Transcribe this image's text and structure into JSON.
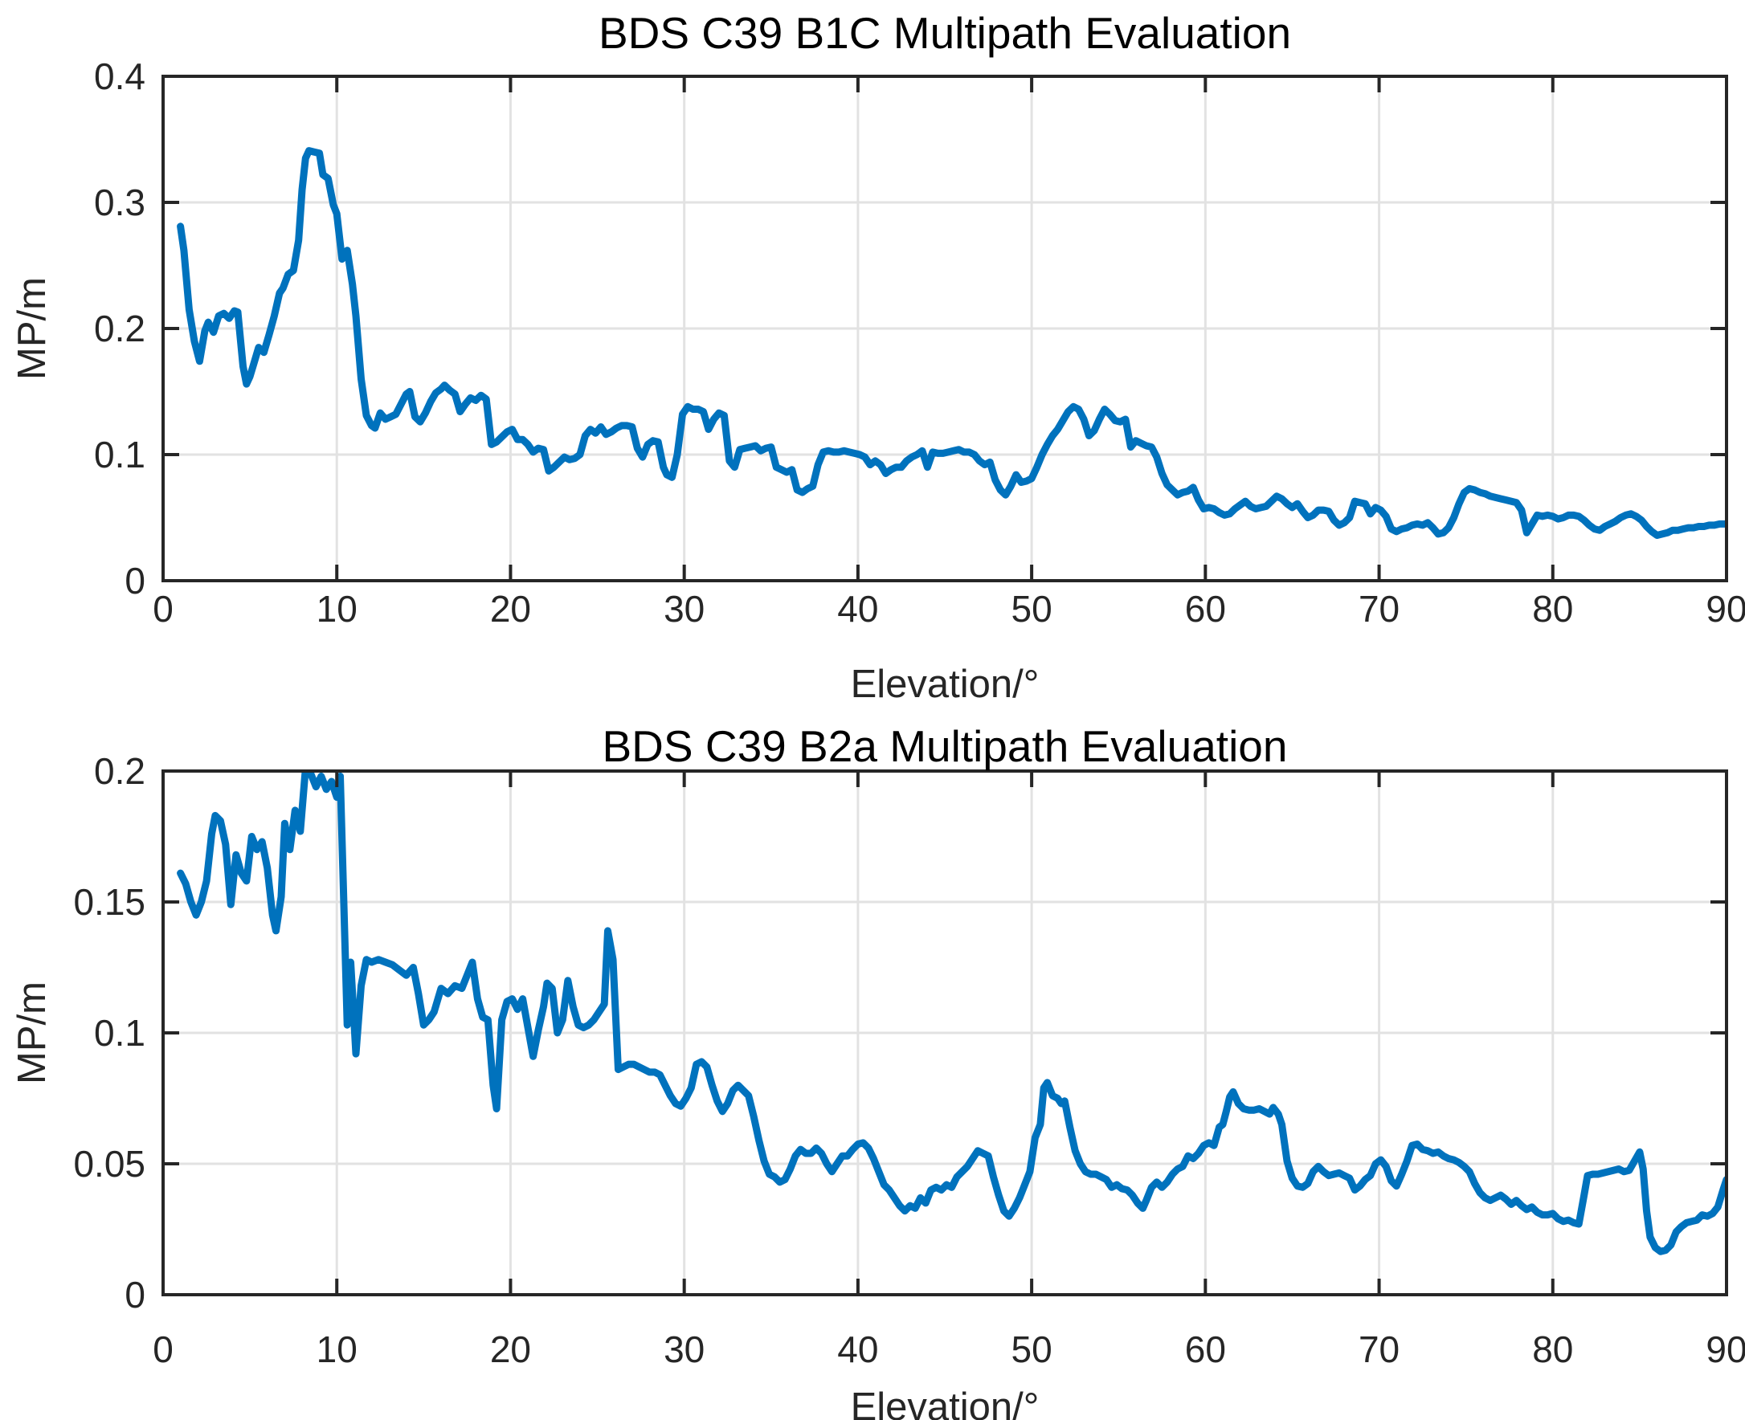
{
  "figure": {
    "background": "#ffffff",
    "axis_color": "#262626",
    "grid_color": "#e2e2e2",
    "line_color": "#0072BD"
  },
  "chart_data": [
    {
      "type": "line",
      "title": "BDS C39 B1C Multipath Evaluation",
      "xlabel": "Elevation/°",
      "ylabel": "MP/m",
      "xlim": [
        0,
        90
      ],
      "ylim": [
        0,
        0.4
      ],
      "xticks": [
        0,
        10,
        20,
        30,
        40,
        50,
        60,
        70,
        80,
        90
      ],
      "xtick_labels": [
        "0",
        "10",
        "20",
        "30",
        "40",
        "50",
        "60",
        "70",
        "80",
        "90"
      ],
      "yticks": [
        0,
        0.1,
        0.2,
        0.3,
        0.4
      ],
      "ytick_labels": [
        "0",
        "0.1",
        "0.2",
        "0.3",
        "0.4"
      ],
      "grid": true,
      "legend": "none",
      "line_color": "#0072BD",
      "x": [
        1,
        1.2,
        1.5,
        1.8,
        2.1,
        2.4,
        2.6,
        2.9,
        3.2,
        3.5,
        3.8,
        4.1,
        4.3,
        4.6,
        4.8,
        5,
        5.2,
        5.5,
        5.8,
        6.1,
        6.4,
        6.7,
        6.9,
        7.2,
        7.5,
        7.8,
        8,
        8.2,
        8.4,
        8.7,
        9,
        9.2,
        9.5,
        9.8,
        10,
        10.3,
        10.6,
        10.9,
        11.1,
        11.4,
        11.7,
        12,
        12.2,
        12.5,
        12.8,
        13.1,
        13.4,
        13.7,
        14,
        14.2,
        14.5,
        14.8,
        15.1,
        15.4,
        15.7,
        16,
        16.2,
        16.5,
        16.8,
        17.1,
        17.4,
        17.7,
        18,
        18.3,
        18.6,
        18.9,
        19.2,
        19.5,
        19.8,
        20.1,
        20.4,
        20.7,
        21,
        21.3,
        21.6,
        21.9,
        22.2,
        22.5,
        22.8,
        23.1,
        23.4,
        23.7,
        24,
        24.3,
        24.6,
        24.9,
        25.2,
        25.5,
        25.8,
        26.1,
        26.4,
        26.7,
        27,
        27.3,
        27.6,
        27.9,
        28.2,
        28.5,
        28.8,
        29,
        29.3,
        29.6,
        29.9,
        30.2,
        30.5,
        30.8,
        31.1,
        31.4,
        31.7,
        32,
        32.3,
        32.6,
        32.9,
        33.2,
        33.5,
        33.8,
        34.1,
        34.4,
        34.7,
        35,
        35.3,
        35.6,
        35.9,
        36.2,
        36.5,
        36.8,
        37.1,
        37.4,
        37.7,
        38,
        38.3,
        38.6,
        38.9,
        39.2,
        39.5,
        39.8,
        40.1,
        40.4,
        40.7,
        41,
        41.3,
        41.6,
        41.9,
        42.2,
        42.5,
        42.8,
        43.1,
        43.4,
        43.7,
        44,
        44.3,
        44.6,
        44.9,
        45.2,
        45.5,
        45.8,
        46.1,
        46.4,
        46.7,
        47,
        47.3,
        47.6,
        47.9,
        48.2,
        48.5,
        48.8,
        49.1,
        49.4,
        49.7,
        50,
        50.3,
        50.6,
        50.9,
        51.2,
        51.5,
        51.8,
        52.1,
        52.4,
        52.7,
        53,
        53.3,
        53.6,
        53.9,
        54.2,
        54.5,
        54.8,
        55.1,
        55.4,
        55.7,
        56,
        56.3,
        56.6,
        56.9,
        57.2,
        57.5,
        57.8,
        58.1,
        58.4,
        58.7,
        59,
        59.3,
        59.6,
        59.9,
        60.2,
        60.5,
        60.8,
        61.1,
        61.4,
        61.7,
        62,
        62.3,
        62.6,
        62.9,
        63.2,
        63.5,
        63.8,
        64.1,
        64.4,
        64.7,
        65,
        65.3,
        65.6,
        65.9,
        66.2,
        66.5,
        66.8,
        67.1,
        67.4,
        67.7,
        68,
        68.3,
        68.6,
        68.9,
        69.2,
        69.5,
        69.8,
        70.1,
        70.4,
        70.7,
        71,
        71.3,
        71.6,
        71.9,
        72.2,
        72.5,
        72.8,
        73.1,
        73.4,
        73.7,
        74,
        74.3,
        74.6,
        74.9,
        75.2,
        75.5,
        75.8,
        76.1,
        76.4,
        76.7,
        77,
        77.3,
        77.6,
        77.9,
        78.2,
        78.5,
        78.8,
        79.1,
        79.4,
        79.7,
        80,
        80.3,
        80.6,
        80.9,
        81.2,
        81.5,
        81.8,
        82.1,
        82.4,
        82.7,
        83,
        83.3,
        83.6,
        83.9,
        84.2,
        84.5,
        84.8,
        85.1,
        85.4,
        85.7,
        86,
        86.3,
        86.6,
        86.9,
        87.2,
        87.5,
        87.8,
        88.1,
        88.4,
        88.7,
        89,
        89.3,
        89.6,
        90
      ],
      "y": [
        0.281,
        0.262,
        0.215,
        0.19,
        0.174,
        0.198,
        0.205,
        0.197,
        0.21,
        0.212,
        0.208,
        0.214,
        0.213,
        0.17,
        0.156,
        0.162,
        0.171,
        0.185,
        0.181,
        0.195,
        0.21,
        0.228,
        0.232,
        0.243,
        0.246,
        0.27,
        0.31,
        0.335,
        0.341,
        0.34,
        0.339,
        0.322,
        0.319,
        0.298,
        0.291,
        0.255,
        0.262,
        0.235,
        0.21,
        0.16,
        0.131,
        0.123,
        0.121,
        0.133,
        0.128,
        0.13,
        0.132,
        0.14,
        0.148,
        0.15,
        0.13,
        0.126,
        0.133,
        0.142,
        0.149,
        0.152,
        0.155,
        0.151,
        0.148,
        0.134,
        0.14,
        0.145,
        0.143,
        0.147,
        0.144,
        0.108,
        0.11,
        0.114,
        0.118,
        0.12,
        0.112,
        0.112,
        0.108,
        0.102,
        0.105,
        0.104,
        0.087,
        0.09,
        0.094,
        0.098,
        0.096,
        0.097,
        0.1,
        0.115,
        0.12,
        0.117,
        0.122,
        0.116,
        0.118,
        0.121,
        0.123,
        0.123,
        0.122,
        0.105,
        0.098,
        0.108,
        0.111,
        0.11,
        0.09,
        0.084,
        0.082,
        0.1,
        0.132,
        0.138,
        0.136,
        0.136,
        0.134,
        0.12,
        0.128,
        0.133,
        0.131,
        0.095,
        0.09,
        0.104,
        0.105,
        0.106,
        0.107,
        0.103,
        0.105,
        0.106,
        0.09,
        0.088,
        0.086,
        0.088,
        0.072,
        0.07,
        0.073,
        0.075,
        0.092,
        0.102,
        0.103,
        0.102,
        0.102,
        0.103,
        0.102,
        0.101,
        0.1,
        0.098,
        0.092,
        0.095,
        0.092,
        0.085,
        0.088,
        0.09,
        0.09,
        0.095,
        0.098,
        0.1,
        0.103,
        0.09,
        0.102,
        0.101,
        0.101,
        0.102,
        0.103,
        0.104,
        0.102,
        0.102,
        0.1,
        0.095,
        0.092,
        0.094,
        0.08,
        0.072,
        0.068,
        0.075,
        0.084,
        0.078,
        0.079,
        0.081,
        0.09,
        0.1,
        0.108,
        0.115,
        0.12,
        0.127,
        0.134,
        0.138,
        0.136,
        0.128,
        0.115,
        0.119,
        0.128,
        0.136,
        0.132,
        0.127,
        0.126,
        0.128,
        0.106,
        0.111,
        0.109,
        0.107,
        0.106,
        0.098,
        0.085,
        0.076,
        0.072,
        0.068,
        0.07,
        0.071,
        0.074,
        0.064,
        0.057,
        0.058,
        0.057,
        0.054,
        0.052,
        0.053,
        0.057,
        0.06,
        0.063,
        0.059,
        0.057,
        0.058,
        0.059,
        0.063,
        0.067,
        0.065,
        0.061,
        0.058,
        0.061,
        0.055,
        0.05,
        0.052,
        0.056,
        0.056,
        0.055,
        0.048,
        0.044,
        0.046,
        0.05,
        0.063,
        0.062,
        0.061,
        0.053,
        0.058,
        0.056,
        0.051,
        0.041,
        0.039,
        0.041,
        0.042,
        0.044,
        0.045,
        0.044,
        0.046,
        0.042,
        0.037,
        0.038,
        0.042,
        0.05,
        0.061,
        0.07,
        0.073,
        0.072,
        0.07,
        0.069,
        0.067,
        0.066,
        0.065,
        0.064,
        0.063,
        0.062,
        0.056,
        0.038,
        0.045,
        0.052,
        0.051,
        0.052,
        0.051,
        0.049,
        0.05,
        0.052,
        0.052,
        0.051,
        0.048,
        0.044,
        0.041,
        0.04,
        0.043,
        0.045,
        0.047,
        0.05,
        0.052,
        0.053,
        0.051,
        0.048,
        0.043,
        0.039,
        0.036,
        0.037,
        0.038,
        0.04,
        0.04,
        0.041,
        0.042,
        0.042,
        0.043,
        0.043,
        0.044,
        0.044,
        0.045,
        0.045
      ]
    },
    {
      "type": "line",
      "title": "BDS C39 B2a Multipath Evaluation",
      "xlabel": "Elevation/°",
      "ylabel": "MP/m",
      "xlim": [
        0,
        90
      ],
      "ylim": [
        0,
        0.2
      ],
      "xticks": [
        0,
        10,
        20,
        30,
        40,
        50,
        60,
        70,
        80,
        90
      ],
      "xtick_labels": [
        "0",
        "10",
        "20",
        "30",
        "40",
        "50",
        "60",
        "70",
        "80",
        "90"
      ],
      "yticks": [
        0,
        0.05,
        0.1,
        0.15,
        0.2
      ],
      "ytick_labels": [
        "0",
        "0.05",
        "0.1",
        "0.15",
        "0.2"
      ],
      "grid": true,
      "legend": "none",
      "line_color": "#0072BD",
      "x": [
        1,
        1.3,
        1.6,
        1.9,
        2.2,
        2.5,
        2.8,
        3,
        3.3,
        3.6,
        3.9,
        4.2,
        4.5,
        4.8,
        5.1,
        5.4,
        5.7,
        6,
        6.3,
        6.5,
        6.8,
        7,
        7.3,
        7.6,
        7.9,
        8.2,
        8.5,
        8.8,
        9.1,
        9.4,
        9.7,
        10,
        10.2,
        10.4,
        10.6,
        10.8,
        11.1,
        11.4,
        11.7,
        12,
        12.4,
        12.8,
        13.2,
        13.6,
        14,
        14.4,
        14.7,
        15,
        15.3,
        15.6,
        16,
        16.4,
        16.8,
        17.2,
        17.5,
        17.8,
        18.1,
        18.4,
        18.7,
        19,
        19.2,
        19.5,
        19.8,
        20.1,
        20.4,
        20.7,
        21,
        21.3,
        21.6,
        21.9,
        22.1,
        22.4,
        22.7,
        23,
        23.3,
        23.6,
        23.9,
        24.2,
        24.5,
        24.8,
        25.1,
        25.4,
        25.6,
        25.9,
        26.2,
        26.5,
        26.8,
        27.1,
        27.4,
        27.7,
        28,
        28.3,
        28.6,
        28.9,
        29.2,
        29.5,
        29.8,
        30.1,
        30.4,
        30.7,
        31,
        31.3,
        31.6,
        31.9,
        32.2,
        32.5,
        32.8,
        33.1,
        33.4,
        33.7,
        34,
        34.3,
        34.6,
        34.9,
        35.2,
        35.5,
        35.8,
        36.1,
        36.4,
        36.7,
        37,
        37.3,
        37.6,
        37.9,
        38.2,
        38.5,
        38.8,
        39.1,
        39.4,
        39.7,
        40,
        40.3,
        40.6,
        40.9,
        41.2,
        41.5,
        41.8,
        42.1,
        42.4,
        42.7,
        43,
        43.3,
        43.6,
        43.9,
        44.2,
        44.5,
        44.8,
        45.1,
        45.4,
        45.7,
        46,
        46.3,
        46.6,
        46.9,
        47.2,
        47.5,
        47.8,
        48.1,
        48.4,
        48.7,
        49,
        49.3,
        49.6,
        49.9,
        50.2,
        50.5,
        50.7,
        50.9,
        51.2,
        51.5,
        51.7,
        51.9,
        52.2,
        52.5,
        52.8,
        53.1,
        53.4,
        53.7,
        54,
        54.3,
        54.6,
        54.9,
        55.2,
        55.5,
        55.8,
        56.1,
        56.4,
        56.6,
        56.9,
        57.2,
        57.5,
        57.8,
        58.1,
        58.4,
        58.7,
        59,
        59.3,
        59.6,
        59.9,
        60.2,
        60.5,
        60.8,
        61,
        61.2,
        61.4,
        61.6,
        61.9,
        62.2,
        62.5,
        62.8,
        63.1,
        63.4,
        63.7,
        63.9,
        64.2,
        64.4,
        64.7,
        65,
        65.3,
        65.6,
        65.9,
        66.2,
        66.5,
        66.8,
        67.1,
        67.4,
        67.7,
        68,
        68.3,
        68.6,
        68.9,
        69.2,
        69.5,
        69.8,
        70.1,
        70.4,
        70.7,
        71,
        71.3,
        71.6,
        71.9,
        72.2,
        72.5,
        72.8,
        73.1,
        73.4,
        73.7,
        74,
        74.3,
        74.6,
        74.9,
        75.2,
        75.5,
        75.8,
        76.1,
        76.4,
        76.7,
        77,
        77.3,
        77.6,
        77.9,
        78.2,
        78.5,
        78.8,
        79.1,
        79.4,
        79.7,
        80,
        80.3,
        80.6,
        80.9,
        81.2,
        81.5,
        81.8,
        82,
        82.3,
        82.6,
        82.9,
        83.2,
        83.5,
        83.8,
        84.1,
        84.4,
        84.7,
        85,
        85.2,
        85.4,
        85.6,
        85.9,
        86.2,
        86.5,
        86.8,
        87.1,
        87.4,
        87.7,
        88,
        88.3,
        88.6,
        88.9,
        89.2,
        89.5,
        89.8,
        90
      ],
      "y": [
        0.161,
        0.157,
        0.15,
        0.145,
        0.15,
        0.158,
        0.176,
        0.183,
        0.181,
        0.172,
        0.149,
        0.168,
        0.161,
        0.158,
        0.175,
        0.17,
        0.173,
        0.163,
        0.145,
        0.139,
        0.152,
        0.18,
        0.17,
        0.185,
        0.177,
        0.201,
        0.199,
        0.194,
        0.198,
        0.193,
        0.196,
        0.19,
        0.198,
        0.15,
        0.103,
        0.127,
        0.092,
        0.118,
        0.128,
        0.127,
        0.128,
        0.127,
        0.126,
        0.124,
        0.122,
        0.125,
        0.115,
        0.103,
        0.105,
        0.108,
        0.117,
        0.115,
        0.118,
        0.117,
        0.122,
        0.127,
        0.113,
        0.106,
        0.105,
        0.08,
        0.071,
        0.105,
        0.112,
        0.113,
        0.109,
        0.113,
        0.102,
        0.091,
        0.101,
        0.11,
        0.119,
        0.117,
        0.1,
        0.105,
        0.12,
        0.11,
        0.103,
        0.102,
        0.103,
        0.105,
        0.108,
        0.111,
        0.139,
        0.128,
        0.086,
        0.087,
        0.088,
        0.088,
        0.087,
        0.086,
        0.085,
        0.085,
        0.084,
        0.08,
        0.076,
        0.073,
        0.072,
        0.075,
        0.079,
        0.088,
        0.089,
        0.087,
        0.08,
        0.074,
        0.07,
        0.073,
        0.078,
        0.08,
        0.078,
        0.076,
        0.068,
        0.059,
        0.051,
        0.046,
        0.045,
        0.043,
        0.044,
        0.048,
        0.053,
        0.0555,
        0.054,
        0.054,
        0.056,
        0.054,
        0.05,
        0.047,
        0.05,
        0.053,
        0.053,
        0.0555,
        0.0575,
        0.058,
        0.056,
        0.052,
        0.047,
        0.042,
        0.04,
        0.037,
        0.034,
        0.032,
        0.034,
        0.033,
        0.037,
        0.035,
        0.04,
        0.041,
        0.04,
        0.042,
        0.041,
        0.045,
        0.047,
        0.049,
        0.052,
        0.055,
        0.054,
        0.053,
        0.045,
        0.038,
        0.032,
        0.03,
        0.033,
        0.037,
        0.042,
        0.047,
        0.06,
        0.065,
        0.079,
        0.081,
        0.076,
        0.075,
        0.073,
        0.074,
        0.064,
        0.055,
        0.05,
        0.047,
        0.046,
        0.046,
        0.045,
        0.044,
        0.041,
        0.042,
        0.0405,
        0.04,
        0.038,
        0.035,
        0.033,
        0.036,
        0.041,
        0.043,
        0.041,
        0.043,
        0.046,
        0.048,
        0.049,
        0.053,
        0.052,
        0.054,
        0.057,
        0.058,
        0.057,
        0.064,
        0.065,
        0.07,
        0.0755,
        0.0775,
        0.073,
        0.071,
        0.0705,
        0.0705,
        0.071,
        0.07,
        0.069,
        0.0715,
        0.069,
        0.065,
        0.051,
        0.0445,
        0.0415,
        0.041,
        0.0425,
        0.047,
        0.049,
        0.047,
        0.0455,
        0.046,
        0.0465,
        0.0455,
        0.0445,
        0.04,
        0.0415,
        0.044,
        0.0455,
        0.05,
        0.0515,
        0.049,
        0.0435,
        0.0415,
        0.046,
        0.051,
        0.057,
        0.0575,
        0.0555,
        0.055,
        0.054,
        0.0545,
        0.053,
        0.052,
        0.0515,
        0.0505,
        0.049,
        0.047,
        0.0425,
        0.039,
        0.037,
        0.036,
        0.037,
        0.038,
        0.0365,
        0.0345,
        0.036,
        0.034,
        0.0325,
        0.0335,
        0.0315,
        0.0305,
        0.0305,
        0.031,
        0.029,
        0.028,
        0.0285,
        0.0275,
        0.027,
        0.038,
        0.0455,
        0.046,
        0.046,
        0.0465,
        0.047,
        0.0475,
        0.048,
        0.047,
        0.0475,
        0.051,
        0.0545,
        0.048,
        0.032,
        0.022,
        0.018,
        0.0165,
        0.017,
        0.019,
        0.024,
        0.026,
        0.0275,
        0.028,
        0.0285,
        0.0305,
        0.03,
        0.031,
        0.0335,
        0.04,
        0.044
      ]
    }
  ]
}
